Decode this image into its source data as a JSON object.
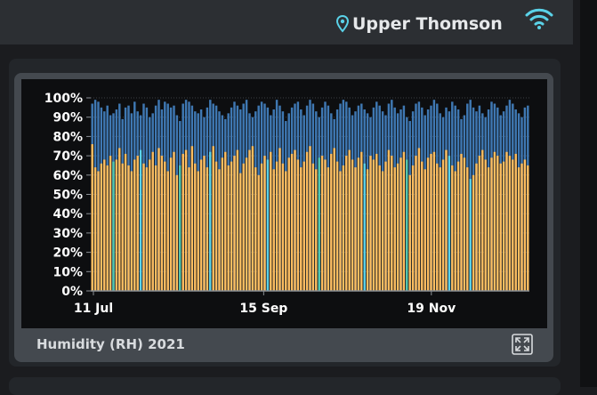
{
  "header": {
    "location": "Upper Thomson",
    "location_icon": "map-pin-icon",
    "wifi_icon": "wifi-icon"
  },
  "widget": {
    "caption": "Humidity (RH) 2021",
    "expand_icon": "expand-icon"
  },
  "colors": {
    "background": "#1b1c1f",
    "accent": "#5ad2e8",
    "series_min": "#fdbd5f",
    "series_max": "#3f78b3"
  },
  "chart_data": {
    "type": "bar",
    "x_start": "2021-07-11",
    "x_end": "2021-12-27",
    "xticks": [
      "11 Jul",
      "15 Sep",
      "19 Nov"
    ],
    "ylim": [
      0,
      100
    ],
    "yticks": [
      "0%",
      "10%",
      "20%",
      "30%",
      "40%",
      "50%",
      "60%",
      "70%",
      "80%",
      "90%",
      "100%"
    ],
    "grid": true,
    "series": [
      {
        "color": "#3f78b3",
        "values": [
          97,
          99,
          98,
          95,
          93,
          96,
          91,
          92,
          94,
          97,
          89,
          95,
          96,
          92,
          98,
          93,
          91,
          97,
          95,
          90,
          92,
          96,
          99,
          94,
          98,
          97,
          95,
          96,
          91,
          88,
          97,
          99,
          98,
          96,
          93,
          92,
          94,
          90,
          95,
          99,
          97,
          96,
          93,
          91,
          89,
          92,
          95,
          98,
          96,
          94,
          97,
          99,
          92,
          90,
          93,
          96,
          98,
          97,
          95,
          91,
          94,
          99,
          96,
          93,
          88,
          92,
          95,
          97,
          98,
          94,
          91,
          96,
          99,
          97,
          93,
          90,
          95,
          98,
          96,
          92,
          89,
          94,
          97,
          99,
          98,
          95,
          91,
          93,
          96,
          97,
          94,
          92,
          90,
          95,
          98,
          96,
          93,
          91,
          97,
          99,
          95,
          92,
          94,
          96,
          90,
          88,
          93,
          97,
          98,
          95,
          91,
          94,
          96,
          99,
          97,
          92,
          90,
          95,
          93,
          98,
          96,
          94,
          89,
          91,
          97,
          99,
          95,
          93,
          96,
          92,
          90,
          94,
          98,
          97,
          95,
          91,
          93,
          96,
          99,
          97,
          94,
          92,
          90,
          95,
          96
        ]
      },
      {
        "color": "#fdbd5f",
        "values": [
          76,
          64,
          62,
          66,
          68,
          65,
          70,
          67,
          68,
          74,
          66,
          71,
          65,
          62,
          68,
          70,
          73,
          66,
          64,
          68,
          72,
          65,
          74,
          70,
          67,
          62,
          69,
          72,
          60,
          65,
          71,
          73,
          64,
          75,
          66,
          62,
          68,
          70,
          64,
          72,
          75,
          67,
          63,
          69,
          72,
          65,
          67,
          70,
          73,
          61,
          66,
          69,
          73,
          75,
          64,
          60,
          66,
          70,
          68,
          72,
          63,
          67,
          74,
          66,
          62,
          69,
          71,
          73,
          68,
          64,
          67,
          72,
          75,
          66,
          63,
          69,
          70,
          68,
          64,
          71,
          74,
          67,
          62,
          65,
          70,
          73,
          68,
          64,
          69,
          72,
          66,
          63,
          70,
          68,
          71,
          65,
          62,
          67,
          73,
          70,
          64,
          66,
          69,
          72,
          68,
          60,
          65,
          70,
          74,
          67,
          63,
          69,
          71,
          72,
          66,
          64,
          68,
          73,
          70,
          65,
          62,
          67,
          71,
          69,
          64,
          58,
          60,
          66,
          70,
          73,
          68,
          64,
          69,
          72,
          70,
          66,
          67,
          72,
          70,
          68,
          71,
          64,
          66,
          68,
          65
        ]
      }
    ]
  }
}
